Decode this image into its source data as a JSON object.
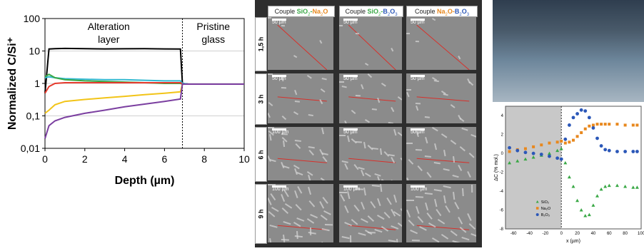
{
  "left_chart": {
    "ylabel": "Normalized C/Si⁺",
    "xlabel": "Depth (µm)",
    "region_labels": [
      "Alteration",
      "layer",
      "Pristine",
      "glass"
    ],
    "y_ticks": [
      "100",
      "10",
      "1",
      "0,1",
      "0,01"
    ],
    "x_ticks": [
      "0",
      "2",
      "4",
      "6",
      "8",
      "10"
    ]
  },
  "micrographs": {
    "columns": [
      {
        "prefix": "Couple ",
        "a": "SiO",
        "a_sub": "2",
        "sep": "-",
        "b": "Na",
        "b_sub": "2",
        "b_tail": "O",
        "a_color": "#39a845",
        "b_color": "#e8881e"
      },
      {
        "prefix": "Couple ",
        "a": "SiO",
        "a_sub": "2",
        "sep": "-",
        "b": "B",
        "b_sub": "2",
        "b_tail": "O",
        "b_tail_sub": "3",
        "a_color": "#39a845",
        "b_color": "#2b57b8"
      },
      {
        "prefix": "Couple ",
        "a": "Na",
        "a_sub": "2",
        "sep": "O-",
        "b": "B",
        "b_sub": "2",
        "b_tail": "O",
        "b_tail_sub": "3",
        "a_color": "#e8881e",
        "b_color": "#2b57b8"
      }
    ],
    "rows": [
      "1,5 h",
      "3 h",
      "6 h",
      "9 h"
    ],
    "scale_small": "50 µm",
    "scale_large": "100 µm"
  },
  "right_chart": {
    "ylabel": "ΔC (% mol.)",
    "xlabel": "x (µm)",
    "y_ticks": [
      "4",
      "2",
      "0",
      "-2",
      "-4",
      "-6",
      "-8"
    ],
    "x_ticks": [
      "-60",
      "-40",
      "-20",
      "0",
      "20",
      "40",
      "60",
      "80",
      "100"
    ],
    "legend": [
      "SiO₂",
      "Na₂O",
      "B₂O₃"
    ]
  },
  "chart_data": [
    {
      "type": "line",
      "xlabel": "Depth (µm)",
      "ylabel": "Normalized C/Si⁺",
      "yscale": "log",
      "xlim": [
        0,
        10
      ],
      "ylim": [
        0.01,
        100
      ],
      "annotations": [
        "Alteration layer",
        "Pristine glass"
      ],
      "divider_x": 6.9,
      "x": [
        0,
        0.2,
        0.5,
        1,
        2,
        3,
        4,
        5,
        6,
        6.8,
        6.9,
        7.2,
        8,
        9,
        10
      ],
      "series": [
        {
          "color": "#000000",
          "values": [
            0.5,
            11.5,
            11.8,
            12,
            11.8,
            11.6,
            11.7,
            11.8,
            11.6,
            11.5,
            1,
            0.95,
            0.95,
            0.95,
            0.95
          ]
        },
        {
          "color": "#31b9d1",
          "values": [
            1.5,
            1.6,
            1.5,
            1.4,
            1.35,
            1.3,
            1.3,
            1.25,
            1.2,
            1.2,
            1,
            0.95,
            0.95,
            0.95,
            0.95
          ]
        },
        {
          "color": "#39a845",
          "values": [
            1.6,
            1.9,
            1.5,
            1.3,
            1.2,
            1.15,
            1.1,
            1.05,
            1.0,
            1.0,
            0.95,
            0.95,
            0.95,
            0.95,
            0.95
          ]
        },
        {
          "color": "#e53a2d",
          "values": [
            0.5,
            0.8,
            1.0,
            1.05,
            1.05,
            1.05,
            1.05,
            1.05,
            1.05,
            1.05,
            0.95,
            0.95,
            0.95,
            0.95,
            0.95
          ]
        },
        {
          "color": "#f2c418",
          "values": [
            0.12,
            0.15,
            0.22,
            0.28,
            0.32,
            0.36,
            0.4,
            0.45,
            0.5,
            0.55,
            0.95,
            0.95,
            0.95,
            0.95,
            0.95
          ]
        },
        {
          "color": "#7b3fa0",
          "values": [
            0.02,
            0.05,
            0.07,
            0.09,
            0.12,
            0.15,
            0.19,
            0.23,
            0.28,
            0.33,
            0.95,
            0.95,
            0.95,
            0.95,
            0.95
          ]
        }
      ]
    },
    {
      "type": "scatter",
      "xlabel": "x (µm)",
      "ylabel": "ΔC (% mol.)",
      "xlim": [
        -70,
        100
      ],
      "ylim": [
        -8,
        5
      ],
      "shaded_range": [
        -70,
        0
      ],
      "x": [
        -65,
        -55,
        -45,
        -35,
        -25,
        -15,
        -5,
        0,
        5,
        10,
        15,
        20,
        25,
        30,
        35,
        40,
        45,
        50,
        55,
        60,
        70,
        80,
        90,
        95
      ],
      "series": [
        {
          "name": "SiO₂",
          "color": "#39a845",
          "values": [
            -1,
            -0.8,
            -0.6,
            -0.4,
            -0.2,
            0,
            0.3,
            0.5,
            -1,
            -2.5,
            -3.5,
            -5,
            -6,
            -6.6,
            -6.5,
            -5.5,
            -4.5,
            -3.8,
            -3.5,
            -3.4,
            -3.4,
            -3.5,
            -3.6,
            -3.6
          ]
        },
        {
          "name": "Na₂O",
          "color": "#e8881e",
          "values": [
            0.2,
            0.4,
            0.5,
            0.7,
            0.9,
            1.1,
            1.2,
            1.3,
            1.1,
            1.2,
            1.4,
            1.8,
            2.2,
            2.6,
            2.9,
            3.0,
            3.1,
            3.1,
            3.1,
            3.1,
            3.1,
            3.0,
            3.0,
            3.0
          ]
        },
        {
          "name": "B₂O₃",
          "color": "#2b57b8",
          "values": [
            0.6,
            0.3,
            0.1,
            0,
            -0.1,
            -0.3,
            -0.5,
            -0.6,
            1.5,
            3.0,
            3.8,
            4.2,
            4.6,
            4.5,
            3.8,
            2.7,
            1.6,
            0.8,
            0.4,
            0.3,
            0.2,
            0.2,
            0.2,
            0.2
          ]
        }
      ]
    }
  ]
}
